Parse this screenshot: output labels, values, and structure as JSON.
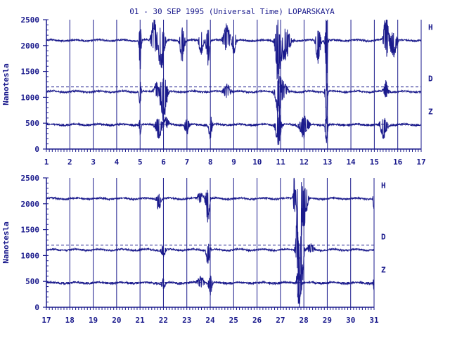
{
  "title": "01 - 30 SEP 1995 (Universal Time) LOPARSKAYA",
  "ylabel": "Nanotesla",
  "colors": {
    "trace": "#1a1a8c",
    "axis": "#1a1a8c",
    "text": "#1a1a8c"
  },
  "chart_data": [
    {
      "type": "line",
      "panel": "top",
      "title": "01 - 30 SEP 1995 (Universal Time) LOPARSKAYA",
      "ylabel": "Nanotesla",
      "xlim": [
        1,
        17
      ],
      "ylim": [
        0,
        2500
      ],
      "xticks": [
        "1",
        "2",
        "3",
        "4",
        "5",
        "6",
        "7",
        "8",
        "9",
        "10",
        "11",
        "12",
        "13",
        "14",
        "15",
        "16",
        "17"
      ],
      "yticks": [
        "0",
        "500",
        "1000",
        "1500",
        "2000",
        "2500"
      ],
      "baselines": [
        1200,
        480
      ],
      "series": [
        {
          "name": "H",
          "baseline": 2100,
          "events": [
            {
              "day": 5.0,
              "amp": -400,
              "width": 0.05
            },
            {
              "day": 5.6,
              "amp": 350,
              "width": 0.12
            },
            {
              "day": 5.9,
              "amp": -420,
              "width": 0.15
            },
            {
              "day": 6.8,
              "amp": -300,
              "width": 0.1
            },
            {
              "day": 7.6,
              "amp": -200,
              "width": 0.1
            },
            {
              "day": 7.9,
              "amp": -350,
              "width": 0.08
            },
            {
              "day": 8.7,
              "amp": 250,
              "width": 0.15
            },
            {
              "day": 9.0,
              "amp": -200,
              "width": 0.1
            },
            {
              "day": 10.9,
              "amp": -600,
              "width": 0.12
            },
            {
              "day": 11.2,
              "amp": -300,
              "width": 0.2
            },
            {
              "day": 12.6,
              "amp": -350,
              "width": 0.1
            },
            {
              "day": 12.95,
              "amp": -700,
              "width": 0.05
            },
            {
              "day": 15.5,
              "amp": 420,
              "width": 0.1
            },
            {
              "day": 15.8,
              "amp": -250,
              "width": 0.15
            }
          ]
        },
        {
          "name": "D",
          "baseline": 1110,
          "events": [
            {
              "day": 5.0,
              "amp": -250,
              "width": 0.05
            },
            {
              "day": 5.7,
              "amp": 150,
              "width": 0.12
            },
            {
              "day": 6.0,
              "amp": -450,
              "width": 0.15
            },
            {
              "day": 8.7,
              "amp": 120,
              "width": 0.15
            },
            {
              "day": 10.9,
              "amp": -400,
              "width": 0.12
            },
            {
              "day": 11.1,
              "amp": 150,
              "width": 0.2
            },
            {
              "day": 12.95,
              "amp": -500,
              "width": 0.05
            },
            {
              "day": 15.5,
              "amp": 150,
              "width": 0.1
            }
          ]
        },
        {
          "name": "Z",
          "baseline": 470,
          "events": [
            {
              "day": 5.0,
              "amp": -150,
              "width": 0.05
            },
            {
              "day": 5.8,
              "amp": -200,
              "width": 0.15
            },
            {
              "day": 6.1,
              "amp": 120,
              "width": 0.12
            },
            {
              "day": 7.0,
              "amp": -150,
              "width": 0.1
            },
            {
              "day": 8.0,
              "amp": -200,
              "width": 0.08
            },
            {
              "day": 10.9,
              "amp": -300,
              "width": 0.12
            },
            {
              "day": 12.0,
              "amp": -200,
              "width": 0.2
            },
            {
              "day": 12.95,
              "amp": -350,
              "width": 0.05
            },
            {
              "day": 15.4,
              "amp": -200,
              "width": 0.15
            }
          ]
        }
      ]
    },
    {
      "type": "line",
      "panel": "bottom",
      "ylabel": "Nanotesla",
      "xlim": [
        17,
        31
      ],
      "ylim": [
        0,
        2500
      ],
      "xticks": [
        "17",
        "18",
        "19",
        "20",
        "21",
        "22",
        "23",
        "24",
        "25",
        "26",
        "27",
        "28",
        "29",
        "30",
        "31"
      ],
      "yticks": [
        "0",
        "500",
        "1000",
        "1500",
        "2000",
        "2500"
      ],
      "baselines": [
        1200,
        480
      ],
      "series": [
        {
          "name": "H",
          "baseline": 2100,
          "events": [
            {
              "day": 21.8,
              "amp": -150,
              "width": 0.1
            },
            {
              "day": 23.6,
              "amp": 100,
              "width": 0.15
            },
            {
              "day": 23.9,
              "amp": -350,
              "width": 0.08
            },
            {
              "day": 27.6,
              "amp": 400,
              "width": 0.05
            },
            {
              "day": 27.8,
              "amp": -1500,
              "width": 0.08
            },
            {
              "day": 28.0,
              "amp": -400,
              "width": 0.15
            },
            {
              "day": 31.0,
              "amp": -150,
              "width": 0.05
            }
          ]
        },
        {
          "name": "D",
          "baseline": 1110,
          "events": [
            {
              "day": 22.0,
              "amp": -100,
              "width": 0.1
            },
            {
              "day": 23.9,
              "amp": -250,
              "width": 0.08
            },
            {
              "day": 27.7,
              "amp": 500,
              "width": 0.06
            },
            {
              "day": 27.9,
              "amp": -700,
              "width": 0.08
            },
            {
              "day": 28.3,
              "amp": 80,
              "width": 0.15
            }
          ]
        },
        {
          "name": "Z",
          "baseline": 470,
          "events": [
            {
              "day": 22.0,
              "amp": -100,
              "width": 0.1
            },
            {
              "day": 23.6,
              "amp": 100,
              "width": 0.15
            },
            {
              "day": 24.0,
              "amp": -180,
              "width": 0.08
            },
            {
              "day": 27.8,
              "amp": -350,
              "width": 0.08
            },
            {
              "day": 27.7,
              "amp": 120,
              "width": 0.05
            },
            {
              "day": 31.0,
              "amp": -120,
              "width": 0.05
            }
          ]
        }
      ]
    }
  ]
}
